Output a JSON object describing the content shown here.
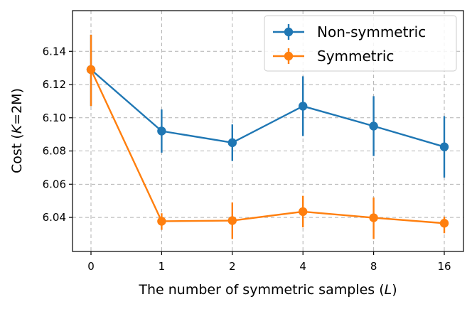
{
  "chart_data": {
    "type": "line",
    "title": "",
    "xlabel": "The number of symmetric samples (",
    "xlabel_var": "L",
    "xlabel_end": ")",
    "ylabel": "Cost (",
    "ylabel_var": "K",
    "ylabel_end": "=2M)",
    "categories": [
      "0",
      "1",
      "2",
      "4",
      "8",
      "16"
    ],
    "ylim": [
      6.0195,
      6.1645
    ],
    "yticks": [
      6.04,
      6.06,
      6.08,
      6.1,
      6.12,
      6.14
    ],
    "ytick_labels": [
      "6.04",
      "6.06",
      "6.08",
      "6.10",
      "6.12",
      "6.14"
    ],
    "grid": true,
    "legend_position": "top-right",
    "series": [
      {
        "name": "Non-symmetric",
        "color": "#1f77b4",
        "values": [
          6.129,
          6.092,
          6.085,
          6.107,
          6.095,
          6.0825
        ],
        "err_low": [
          6.107,
          6.079,
          6.074,
          6.089,
          6.077,
          6.064
        ],
        "err_high": [
          6.15,
          6.105,
          6.096,
          6.125,
          6.113,
          6.101
        ]
      },
      {
        "name": "Symmetric",
        "color": "#ff7f0e",
        "values": [
          6.129,
          6.0377,
          6.0381,
          6.0435,
          6.0398,
          6.0365
        ],
        "err_low": [
          6.107,
          6.0325,
          6.027,
          6.034,
          6.027,
          6.0305
        ],
        "err_high": [
          6.15,
          6.0425,
          6.049,
          6.053,
          6.052,
          6.0405
        ]
      }
    ]
  }
}
